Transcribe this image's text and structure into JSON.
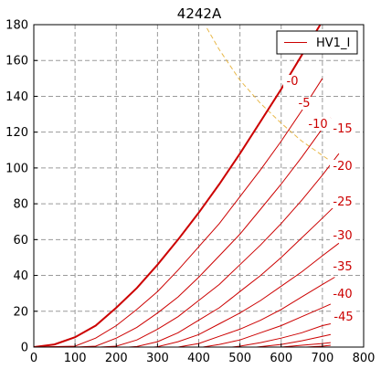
{
  "chart_data": {
    "type": "line",
    "title": "4242A",
    "xlabel": "",
    "ylabel": "",
    "xlim": [
      0,
      800
    ],
    "ylim": [
      0,
      180
    ],
    "xticks": [
      "0",
      "100",
      "200",
      "300",
      "400",
      "500",
      "600",
      "700",
      "800"
    ],
    "yticks": [
      "0",
      "20",
      "40",
      "60",
      "80",
      "100",
      "120",
      "140",
      "160",
      "180"
    ],
    "grid": true,
    "legend": {
      "placement": "top-right",
      "entries": [
        "HV1_I"
      ]
    },
    "colors": {
      "curve": "#cc0000",
      "dissipation": "#e8b84a"
    },
    "series": [
      {
        "label": "-0",
        "bold": true,
        "points": [
          [
            0,
            0
          ],
          [
            50,
            1.5
          ],
          [
            100,
            5.5
          ],
          [
            150,
            12
          ],
          [
            200,
            22
          ],
          [
            250,
            33
          ],
          [
            300,
            46
          ],
          [
            350,
            60
          ],
          [
            400,
            75
          ],
          [
            450,
            91
          ],
          [
            500,
            108
          ],
          [
            550,
            126
          ],
          [
            600,
            144
          ],
          [
            650,
            163
          ],
          [
            700,
            182
          ]
        ]
      },
      {
        "label": "-5",
        "points": [
          [
            0,
            0
          ],
          [
            100,
            0.5
          ],
          [
            150,
            5
          ],
          [
            200,
            12
          ],
          [
            250,
            21
          ],
          [
            300,
            31
          ],
          [
            350,
            43
          ],
          [
            400,
            56
          ],
          [
            450,
            69
          ],
          [
            500,
            84
          ],
          [
            550,
            99
          ],
          [
            600,
            115
          ],
          [
            650,
            132
          ],
          [
            700,
            150
          ]
        ]
      },
      {
        "label": "-10",
        "points": [
          [
            100,
            0
          ],
          [
            150,
            0.5
          ],
          [
            200,
            5
          ],
          [
            250,
            11
          ],
          [
            300,
            19
          ],
          [
            350,
            28
          ],
          [
            400,
            39
          ],
          [
            450,
            51
          ],
          [
            500,
            63
          ],
          [
            550,
            77
          ],
          [
            600,
            91
          ],
          [
            650,
            106
          ],
          [
            700,
            122
          ],
          [
            720,
            128
          ]
        ]
      },
      {
        "label": "-15",
        "points": [
          [
            160,
            0
          ],
          [
            200,
            0.5
          ],
          [
            250,
            4
          ],
          [
            300,
            10
          ],
          [
            350,
            17
          ],
          [
            400,
            26
          ],
          [
            450,
            35
          ],
          [
            500,
            46
          ],
          [
            550,
            57
          ],
          [
            600,
            69
          ],
          [
            650,
            82
          ],
          [
            700,
            96
          ],
          [
            740,
            108
          ]
        ]
      },
      {
        "label": "-20",
        "points": [
          [
            230,
            0
          ],
          [
            250,
            0.3
          ],
          [
            300,
            3
          ],
          [
            350,
            8
          ],
          [
            400,
            15
          ],
          [
            450,
            22
          ],
          [
            500,
            31
          ],
          [
            550,
            40
          ],
          [
            600,
            50
          ],
          [
            650,
            61
          ],
          [
            700,
            72
          ],
          [
            740,
            81
          ]
        ]
      },
      {
        "label": "-25",
        "points": [
          [
            290,
            0
          ],
          [
            300,
            0.2
          ],
          [
            350,
            3
          ],
          [
            400,
            7
          ],
          [
            450,
            13
          ],
          [
            500,
            19
          ],
          [
            550,
            26
          ],
          [
            600,
            34
          ],
          [
            650,
            42
          ],
          [
            700,
            51
          ],
          [
            740,
            58
          ]
        ]
      },
      {
        "label": "-30",
        "points": [
          [
            350,
            0
          ],
          [
            400,
            2
          ],
          [
            450,
            6
          ],
          [
            500,
            10
          ],
          [
            550,
            15
          ],
          [
            600,
            21
          ],
          [
            650,
            28
          ],
          [
            700,
            35
          ],
          [
            730,
            39
          ]
        ]
      },
      {
        "label": "-35",
        "points": [
          [
            410,
            0
          ],
          [
            450,
            1.5
          ],
          [
            500,
            4
          ],
          [
            550,
            8
          ],
          [
            600,
            12
          ],
          [
            650,
            17
          ],
          [
            700,
            22
          ],
          [
            720,
            24
          ]
        ]
      },
      {
        "label": "-40",
        "points": [
          [
            480,
            0
          ],
          [
            500,
            0.5
          ],
          [
            550,
            2.5
          ],
          [
            600,
            5
          ],
          [
            650,
            8
          ],
          [
            700,
            12
          ],
          [
            720,
            13
          ]
        ]
      },
      {
        "label": "-45",
        "points": [
          [
            540,
            0
          ],
          [
            600,
            1.5
          ],
          [
            650,
            3.5
          ],
          [
            700,
            6
          ],
          [
            720,
            7
          ]
        ]
      },
      {
        "label": "",
        "points": [
          [
            600,
            0
          ],
          [
            650,
            1
          ],
          [
            700,
            2
          ],
          [
            720,
            2.5
          ]
        ]
      },
      {
        "label": "",
        "points": [
          [
            660,
            0
          ],
          [
            700,
            0.5
          ],
          [
            720,
            1
          ]
        ]
      }
    ],
    "dissipation_curve": {
      "style": "dashed",
      "points": [
        [
          420,
          178
        ],
        [
          450,
          166
        ],
        [
          500,
          149
        ],
        [
          550,
          136
        ],
        [
          600,
          125
        ],
        [
          650,
          115
        ],
        [
          700,
          107
        ],
        [
          750,
          99
        ]
      ]
    }
  }
}
